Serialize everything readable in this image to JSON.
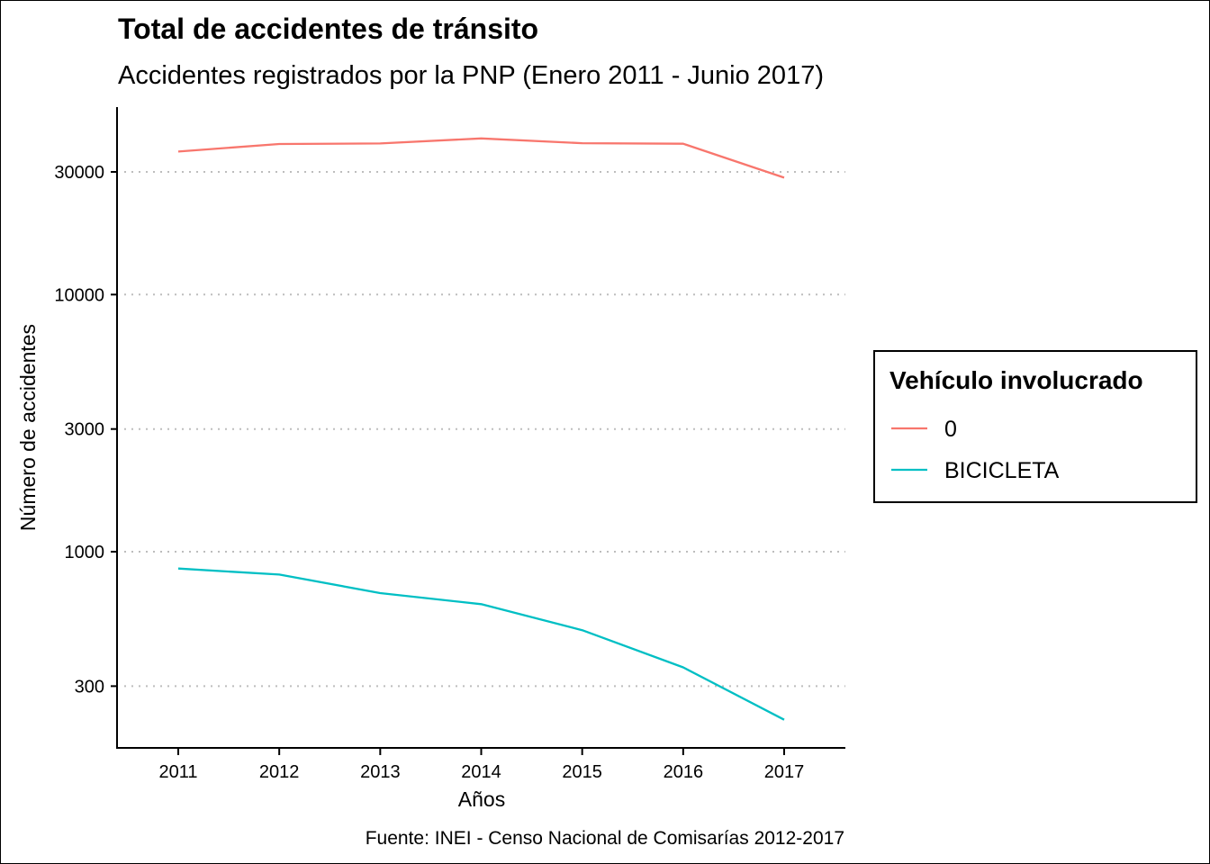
{
  "chart_data": {
    "type": "line",
    "title": "Total de accidentes de tránsito",
    "subtitle": "Accidentes registrados por la PNP (Enero 2011 - Junio 2017)",
    "xlabel": "Años",
    "ylabel": "Número de accidentes",
    "caption": "Fuente: INEI - Censo Nacional de Comisarías 2012-2017",
    "y_scale": "log10",
    "ylim": [
      180,
      50000
    ],
    "x": [
      2011,
      2012,
      2013,
      2014,
      2015,
      2016,
      2017
    ],
    "x_tick_labels": [
      "2011",
      "2012",
      "2013",
      "2014",
      "2015",
      "2016",
      "2017"
    ],
    "y_ticks": [
      300,
      1000,
      3000,
      10000,
      30000
    ],
    "y_tick_labels": [
      "300",
      "1000",
      "3000",
      "10000",
      "30000"
    ],
    "grid": "horizontal dotted",
    "legend": {
      "title": "Vehículo involucrado",
      "placement": "right"
    },
    "series": [
      {
        "name": "0",
        "color": "#F8766D",
        "values": [
          36000,
          38500,
          38700,
          40500,
          38800,
          38600,
          28500
        ]
      },
      {
        "name": "BICICLETA",
        "color": "#00BFC4",
        "values": [
          860,
          815,
          690,
          625,
          495,
          355,
          222
        ]
      }
    ]
  }
}
